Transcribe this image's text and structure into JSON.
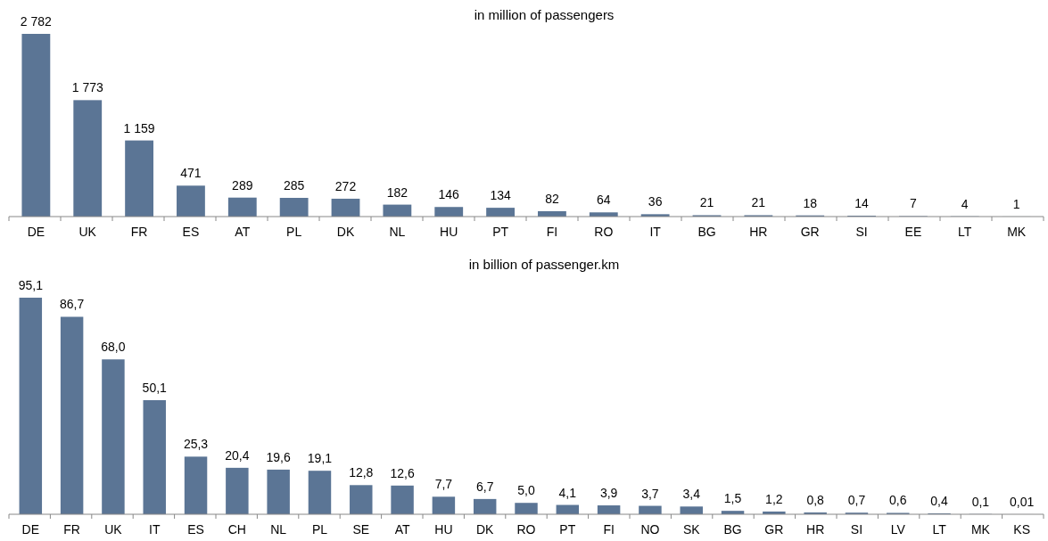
{
  "chart_data": [
    {
      "type": "bar",
      "title": "in million of passengers",
      "categories": [
        "DE",
        "UK",
        "FR",
        "ES",
        "AT",
        "PL",
        "DK",
        "NL",
        "HU",
        "PT",
        "FI",
        "RO",
        "IT",
        "BG",
        "HR",
        "GR",
        "SI",
        "EE",
        "LT",
        "MK"
      ],
      "values": [
        2782,
        1773,
        1159,
        471,
        289,
        285,
        272,
        182,
        146,
        134,
        82,
        64,
        36,
        21,
        21,
        18,
        14,
        7,
        4,
        1
      ],
      "value_labels": [
        "2 782",
        "1 773",
        "1 159",
        "471",
        "289",
        "285",
        "272",
        "182",
        "146",
        "134",
        "82",
        "64",
        "36",
        "21",
        "21",
        "18",
        "14",
        "7",
        "4",
        "1"
      ],
      "color": "#5b7595"
    },
    {
      "type": "bar",
      "title": "in billion of passenger.km",
      "categories": [
        "DE",
        "FR",
        "UK",
        "IT",
        "ES",
        "CH",
        "NL",
        "PL",
        "SE",
        "AT",
        "HU",
        "DK",
        "RO",
        "PT",
        "FI",
        "NO",
        "SK",
        "BG",
        "GR",
        "HR",
        "SI",
        "LV",
        "LT",
        "MK",
        "KS"
      ],
      "values": [
        95.1,
        86.7,
        68.0,
        50.1,
        25.3,
        20.4,
        19.6,
        19.1,
        12.8,
        12.6,
        7.7,
        6.7,
        5.0,
        4.1,
        3.9,
        3.7,
        3.4,
        1.5,
        1.2,
        0.8,
        0.7,
        0.6,
        0.4,
        0.1,
        0.01
      ],
      "value_labels": [
        "95,1",
        "86,7",
        "68,0",
        "50,1",
        "25,3",
        "20,4",
        "19,6",
        "19,1",
        "12,8",
        "12,6",
        "7,7",
        "6,7",
        "5,0",
        "4,1",
        "3,9",
        "3,7",
        "3,4",
        "1,5",
        "1,2",
        "0,8",
        "0,7",
        "0,6",
        "0,4",
        "0,1",
        "0,01"
      ],
      "color": "#5b7595"
    }
  ]
}
